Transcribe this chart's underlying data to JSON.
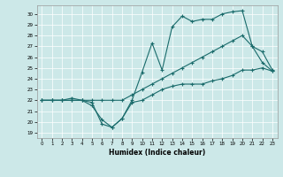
{
  "title": "",
  "xlabel": "Humidex (Indice chaleur)",
  "bg_color": "#cce8e8",
  "line_color": "#1a6b6b",
  "xlim": [
    -0.5,
    23.5
  ],
  "ylim": [
    18.5,
    30.8
  ],
  "xticks": [
    0,
    1,
    2,
    3,
    4,
    5,
    6,
    7,
    8,
    9,
    10,
    11,
    12,
    13,
    14,
    15,
    16,
    17,
    18,
    19,
    20,
    21,
    22,
    23
  ],
  "yticks": [
    19,
    20,
    21,
    22,
    23,
    24,
    25,
    26,
    27,
    28,
    29,
    30
  ],
  "line1_x": [
    0,
    1,
    2,
    3,
    4,
    5,
    6,
    7,
    8,
    9,
    10,
    11,
    12,
    13,
    14,
    15,
    16,
    17,
    18,
    19,
    20,
    21,
    22,
    23
  ],
  "line1_y": [
    22,
    22,
    22,
    22,
    22,
    21.5,
    20.2,
    19.5,
    20.3,
    21.8,
    22.0,
    22.5,
    23.0,
    23.3,
    23.5,
    23.5,
    23.5,
    23.8,
    24.0,
    24.3,
    24.8,
    24.8,
    25.0,
    24.7
  ],
  "line2_x": [
    0,
    1,
    2,
    3,
    4,
    5,
    6,
    7,
    8,
    9,
    10,
    11,
    12,
    13,
    14,
    15,
    16,
    17,
    18,
    19,
    20,
    21,
    22,
    23
  ],
  "line2_y": [
    22,
    22,
    22,
    22.2,
    22,
    21.8,
    19.8,
    19.5,
    20.3,
    22.0,
    24.6,
    27.3,
    24.8,
    28.8,
    29.8,
    29.3,
    29.5,
    29.5,
    30.0,
    30.2,
    30.3,
    27.0,
    25.5,
    24.7
  ],
  "line3_x": [
    0,
    1,
    2,
    3,
    4,
    5,
    6,
    7,
    8,
    9,
    10,
    11,
    12,
    13,
    14,
    15,
    16,
    17,
    18,
    19,
    20,
    21,
    22,
    23
  ],
  "line3_y": [
    22,
    22,
    22,
    22,
    22,
    22,
    22,
    22,
    22,
    22.5,
    23.0,
    23.5,
    24.0,
    24.5,
    25.0,
    25.5,
    26.0,
    26.5,
    27.0,
    27.5,
    28.0,
    27.0,
    26.5,
    24.8
  ]
}
